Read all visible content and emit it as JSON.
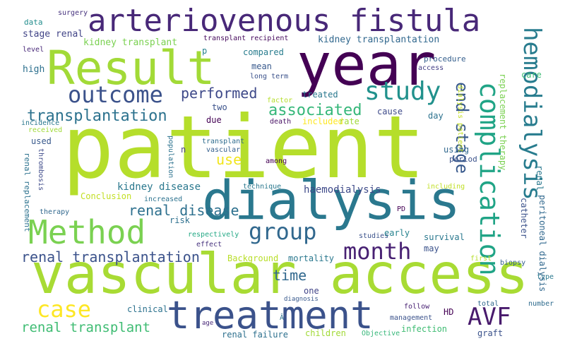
{
  "words": [
    {
      "text": "patient",
      "color": "#b5de2b"
    },
    {
      "text": "vascular access",
      "color": "#a8db34"
    },
    {
      "text": "dialysis",
      "color": "#2a788e"
    },
    {
      "text": "year",
      "color": "#440154"
    },
    {
      "text": "treatment",
      "color": "#3b528b"
    },
    {
      "text": "Result",
      "color": "#a2da37"
    },
    {
      "text": "arteriovenous fistula",
      "color": "#482878"
    },
    {
      "text": "Method",
      "color": "#7ad151"
    },
    {
      "text": "complication",
      "color": "#20a486"
    },
    {
      "text": "hemodialysis",
      "color": "#287c8e"
    },
    {
      "text": "outcome",
      "color": "#3b528b"
    },
    {
      "text": "study",
      "color": "#21918c"
    },
    {
      "text": "case",
      "color": "#fde725"
    },
    {
      "text": "group",
      "color": "#31688e"
    },
    {
      "text": "month",
      "color": "#482173"
    },
    {
      "text": "AVF",
      "color": "#481a6c"
    },
    {
      "text": "transplantation",
      "color": "#2c728e"
    },
    {
      "text": "associated",
      "color": "#35b779"
    },
    {
      "text": "end stage",
      "color": "#38598c"
    },
    {
      "text": "performed",
      "color": "#3e4989"
    },
    {
      "text": "renal disease",
      "color": "#2d708e"
    },
    {
      "text": "renal transplantation",
      "color": "#3b528b"
    },
    {
      "text": "renal transplant",
      "color": "#3fbc73"
    },
    {
      "text": "use",
      "color": "#f1e51d"
    },
    {
      "text": "time",
      "color": "#31688e"
    },
    {
      "text": "kidney disease",
      "color": "#2a788e"
    },
    {
      "text": "haemodialysis",
      "color": "#3e4a89"
    },
    {
      "text": "stage renal",
      "color": "#414487"
    },
    {
      "text": "kidney transplant",
      "color": "#7ad151"
    },
    {
      "text": "kidney transplantation",
      "color": "#31688e"
    },
    {
      "text": "transplant recipient",
      "color": "#460a5d"
    },
    {
      "text": "surgery",
      "color": "#46327e"
    },
    {
      "text": "data",
      "color": "#228d8d"
    },
    {
      "text": "care",
      "color": "#3dbc74"
    },
    {
      "text": "compared",
      "color": "#287c8e"
    },
    {
      "text": "mean",
      "color": "#38598c"
    },
    {
      "text": "long term",
      "color": "#3b528b"
    },
    {
      "text": "high",
      "color": "#2d708e"
    },
    {
      "text": "level",
      "color": "#482878"
    },
    {
      "text": "p",
      "color": "#26828e"
    },
    {
      "text": "treated",
      "color": "#2a788e"
    },
    {
      "text": "two",
      "color": "#3b528b"
    },
    {
      "text": "due",
      "color": "#440154"
    },
    {
      "text": "cause",
      "color": "#3e4a89"
    },
    {
      "text": "day",
      "color": "#2c728e"
    },
    {
      "text": "included",
      "color": "#fde725"
    },
    {
      "text": "rate",
      "color": "#9fda3a"
    },
    {
      "text": "death",
      "color": "#471063"
    },
    {
      "text": "factor",
      "color": "#b5de2b"
    },
    {
      "text": "procedure",
      "color": "#355f8d"
    },
    {
      "text": "access",
      "color": "#433e85"
    },
    {
      "text": "incidence",
      "color": "#2a788e"
    },
    {
      "text": "received",
      "color": "#a0da39"
    },
    {
      "text": "used",
      "color": "#38598c"
    },
    {
      "text": "transplant",
      "color": "#2f6c8e"
    },
    {
      "text": "vascular",
      "color": "#355f8d"
    },
    {
      "text": "n",
      "color": "#433e85"
    },
    {
      "text": "population",
      "color": "#2c728e"
    },
    {
      "text": "using",
      "color": "#31688e"
    },
    {
      "text": "period",
      "color": "#3b528b"
    },
    {
      "text": "among",
      "color": "#440154"
    },
    {
      "text": "technique",
      "color": "#2a788e"
    },
    {
      "text": "including",
      "color": "#c0df25"
    },
    {
      "text": "increased",
      "color": "#2c728e"
    },
    {
      "text": "Conclusion",
      "color": "#c2df23"
    },
    {
      "text": "risk",
      "color": "#2d708e"
    },
    {
      "text": "PD",
      "color": "#440154"
    },
    {
      "text": "respectively",
      "color": "#22a884"
    },
    {
      "text": "studies",
      "color": "#3b528b"
    },
    {
      "text": "survival",
      "color": "#2a788e"
    },
    {
      "text": "effect",
      "color": "#46327e"
    },
    {
      "text": "early",
      "color": "#26828e"
    },
    {
      "text": "Background",
      "color": "#b8de29"
    },
    {
      "text": "mortality",
      "color": "#2a788e"
    },
    {
      "text": "may",
      "color": "#3b528b"
    },
    {
      "text": "first",
      "color": "#b5de2b"
    },
    {
      "text": "one",
      "color": "#414487"
    },
    {
      "text": "clinical",
      "color": "#2c728e"
    },
    {
      "text": "diagnosis",
      "color": "#38598c"
    },
    {
      "text": "HD",
      "color": "#440154"
    },
    {
      "text": "follow",
      "color": "#482173"
    },
    {
      "text": "total",
      "color": "#31688e"
    },
    {
      "text": "number",
      "color": "#2f6c8e"
    },
    {
      "text": "biopsy",
      "color": "#355f8d"
    },
    {
      "text": "type",
      "color": "#2a788e"
    },
    {
      "text": "management",
      "color": "#3b528b"
    },
    {
      "text": "age",
      "color": "#482878"
    },
    {
      "text": "Â",
      "color": "#2c728e"
    },
    {
      "text": "children",
      "color": "#a2da37"
    },
    {
      "text": "infection",
      "color": "#3fbc73"
    },
    {
      "text": "renal failure",
      "color": "#2d708e"
    },
    {
      "text": "Objective",
      "color": "#35b779"
    },
    {
      "text": "graft",
      "color": "#3b528b"
    },
    {
      "text": "therapy",
      "color": "#31688e"
    },
    {
      "text": "renal replacement",
      "color": "#2c728e"
    },
    {
      "text": "thrombosis",
      "color": "#3e4a89"
    },
    {
      "text": "replacement therapy",
      "color": "#7ad151"
    },
    {
      "text": "dialysis patient",
      "color": "#c2df23"
    },
    {
      "text": "catheter",
      "color": "#3b528b"
    },
    {
      "text": "peritoneal dialysis",
      "color": "#31688e"
    },
    {
      "text": "renal",
      "color": "#2a788e"
    }
  ]
}
